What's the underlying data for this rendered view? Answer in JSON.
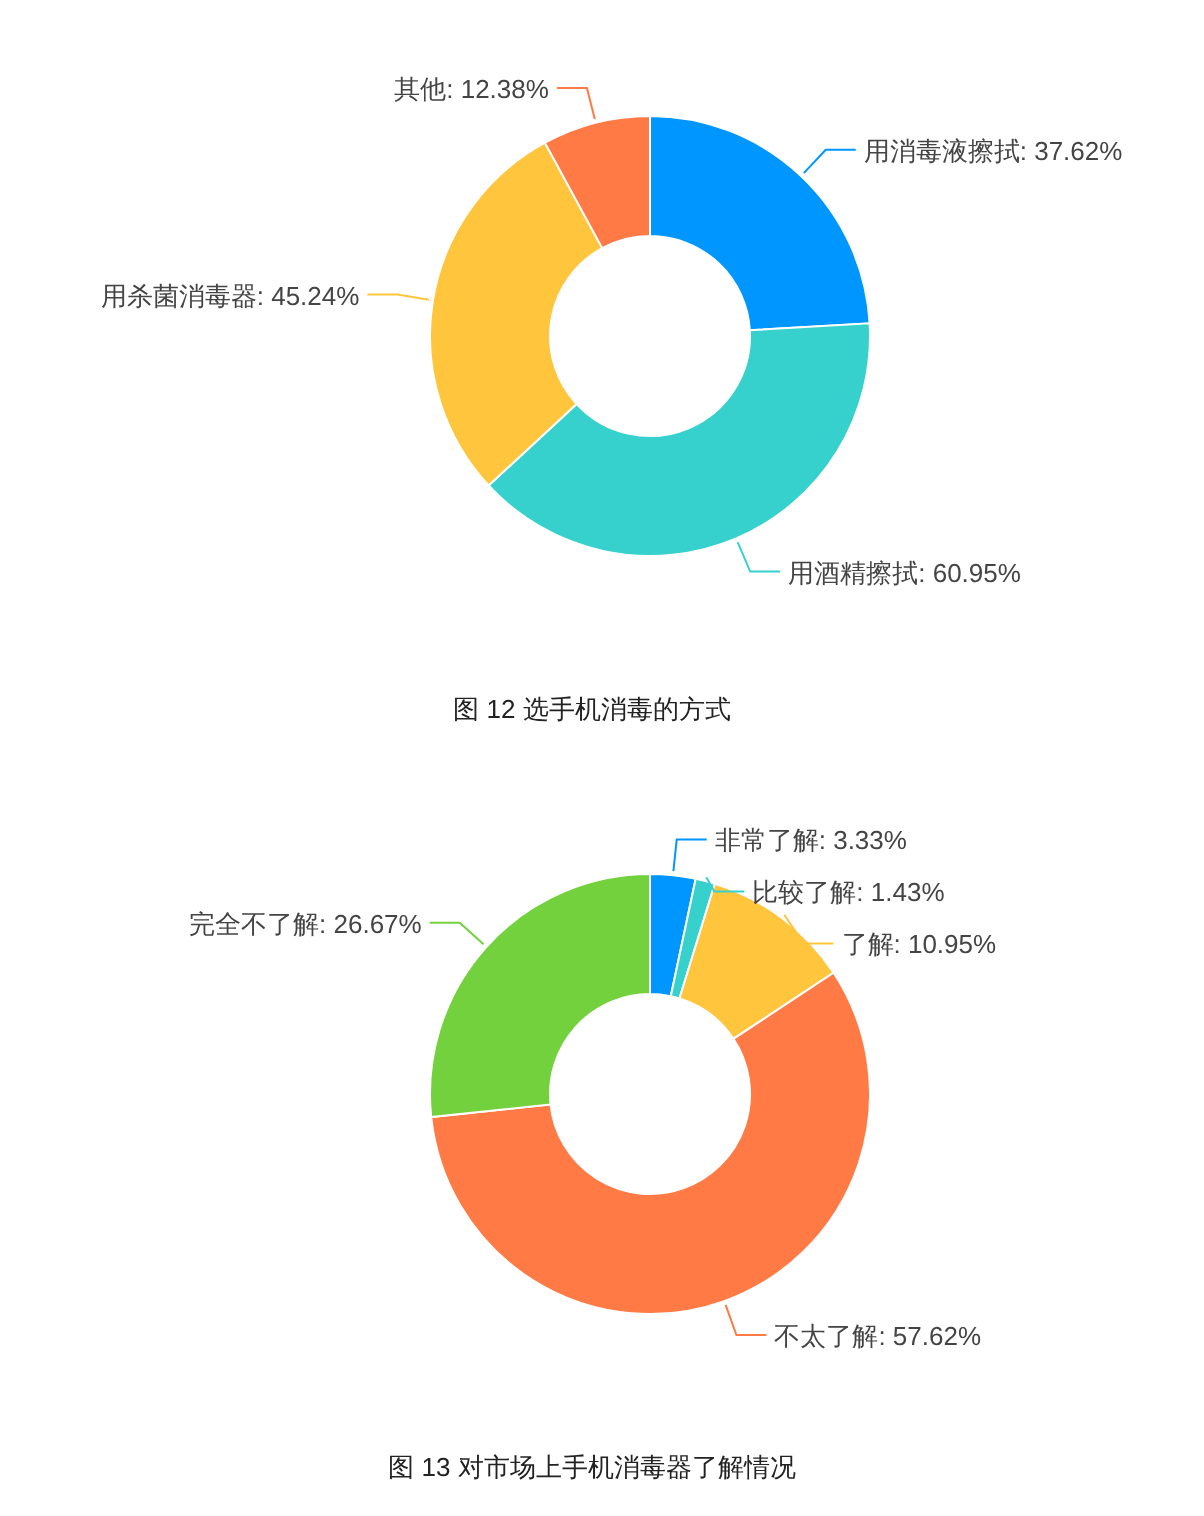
{
  "chart_data": [
    {
      "type": "donut",
      "title": "图 12 选手机消毒的方式",
      "categories": [
        "用消毒液擦拭",
        "用酒精擦拭",
        "用杀菌消毒器",
        "其他"
      ],
      "values": [
        37.62,
        60.95,
        45.24,
        12.38
      ],
      "colors": [
        "#0096ff",
        "#36d1cd",
        "#ffc53d",
        "#ff7a45"
      ],
      "value_labels": [
        "37.62%",
        "60.95%",
        "45.24%",
        "12.38%"
      ]
    },
    {
      "type": "donut",
      "title": "图 13 对市场上手机消毒器了解情况",
      "categories": [
        "非常了解",
        "比较了解",
        "了解",
        "不太了解",
        "完全不了解"
      ],
      "values": [
        3.33,
        1.43,
        10.95,
        57.62,
        26.67
      ],
      "colors": [
        "#0096ff",
        "#36d1cd",
        "#ffc53d",
        "#ff7a45",
        "#73d13d"
      ],
      "value_labels": [
        "3.33%",
        "1.43%",
        "10.95%",
        "57.62%",
        "26.67%"
      ]
    }
  ]
}
